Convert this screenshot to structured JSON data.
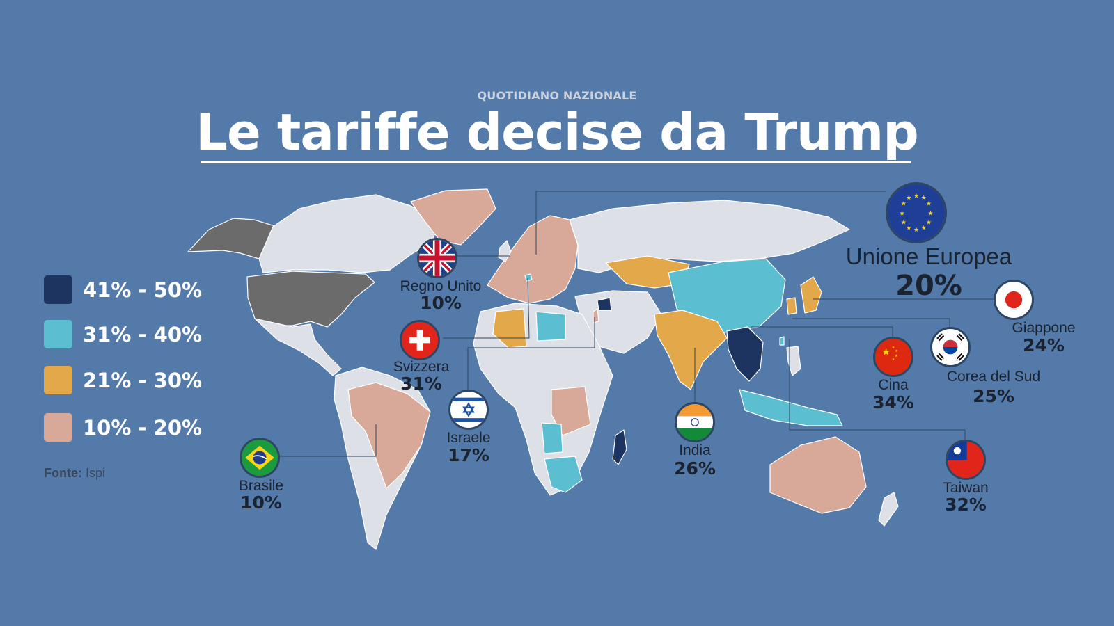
{
  "header": {
    "kicker": "QUOTIDIANO NAZIONALE",
    "title": "Le tariffe decise da Trump"
  },
  "legend": [
    {
      "label": "41% - 50%",
      "color": "#1d3460"
    },
    {
      "label": "31% - 40%",
      "color": "#5cbfd1"
    },
    {
      "label": "21% - 30%",
      "color": "#e2a84a"
    },
    {
      "label": "10% - 20%",
      "color": "#d8a898"
    }
  ],
  "source": {
    "label": "Fonte:",
    "value": "Ispi"
  },
  "colors": {
    "background": "#537aa8",
    "land": "#dde0e6",
    "usa": "#6b6b6b",
    "leader_line": "#2d4663"
  },
  "countries": {
    "eu": {
      "name": "Unione Europea",
      "pct": "20%",
      "flag": "eu-flag-icon"
    },
    "uk": {
      "name": "Regno Unito",
      "pct": "10%",
      "flag": "uk-flag-icon"
    },
    "switzerland": {
      "name": "Svizzera",
      "pct": "31%",
      "flag": "swiss-flag-icon"
    },
    "israel": {
      "name": "Israele",
      "pct": "17%",
      "flag": "israel-flag-icon"
    },
    "brazil": {
      "name": "Brasile",
      "pct": "10%",
      "flag": "brazil-flag-icon"
    },
    "india": {
      "name": "India",
      "pct": "26%",
      "flag": "india-flag-icon"
    },
    "china": {
      "name": "Cina",
      "pct": "34%",
      "flag": "china-flag-icon"
    },
    "japan": {
      "name": "Giappone",
      "pct": "24%",
      "flag": "japan-flag-icon"
    },
    "south_korea": {
      "name": "Corea del Sud",
      "pct": "25%",
      "flag": "south-korea-flag-icon"
    },
    "taiwan": {
      "name": "Taiwan",
      "pct": "32%",
      "flag": "taiwan-flag-icon"
    }
  }
}
